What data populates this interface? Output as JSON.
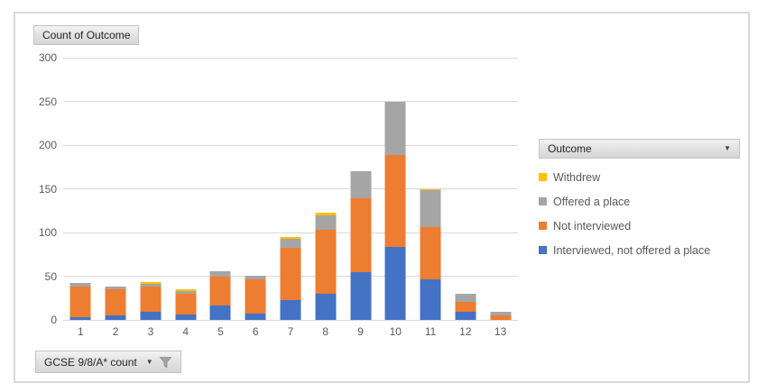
{
  "chart": {
    "values_button_label": "Count of Outcome",
    "legend_button_label": "Outcome",
    "axis_button_label": "GCSE 9/8/A* count"
  },
  "legend": {
    "items": [
      {
        "label": "Withdrew",
        "color": "#FFC000"
      },
      {
        "label": "Offered a place",
        "color": "#A5A5A5"
      },
      {
        "label": "Not interviewed",
        "color": "#ED7D31"
      },
      {
        "label": "Interviewed, not offered a place",
        "color": "#4472C4"
      }
    ]
  },
  "chart_data": {
    "type": "bar",
    "stacked": true,
    "title": "Count of Outcome",
    "xlabel": "GCSE 9/8/A* count",
    "ylabel": "Count of Outcome",
    "categories": [
      "1",
      "2",
      "3",
      "4",
      "5",
      "6",
      "7",
      "8",
      "9",
      "10",
      "11",
      "12",
      "13"
    ],
    "series": [
      {
        "name": "Interviewed, not offered a place",
        "color": "#4472C4",
        "values": [
          3,
          5,
          9,
          6,
          16,
          7,
          23,
          30,
          55,
          84,
          46,
          9,
          0
        ]
      },
      {
        "name": "Not interviewed",
        "color": "#ED7D31",
        "values": [
          35,
          30,
          29,
          24,
          34,
          39,
          60,
          73,
          84,
          105,
          60,
          12,
          5
        ]
      },
      {
        "name": "Offered a place",
        "color": "#A5A5A5",
        "values": [
          4,
          3,
          3,
          3,
          6,
          5,
          10,
          17,
          31,
          61,
          43,
          9,
          4
        ]
      },
      {
        "name": "Withdrew",
        "color": "#FFC000",
        "values": [
          0,
          0,
          2,
          2,
          0,
          0,
          2,
          3,
          0,
          0,
          1,
          0,
          0
        ]
      }
    ],
    "totals": [
      42,
      38,
      43,
      35,
      56,
      51,
      95,
      123,
      170,
      250,
      150,
      30,
      9
    ],
    "ylim": [
      0,
      300
    ],
    "ytick_step": 50,
    "grid": true,
    "legend_position": "right",
    "legend_order_top_to_bottom": [
      "Withdrew",
      "Offered a place",
      "Not interviewed",
      "Interviewed, not offered a place"
    ]
  }
}
